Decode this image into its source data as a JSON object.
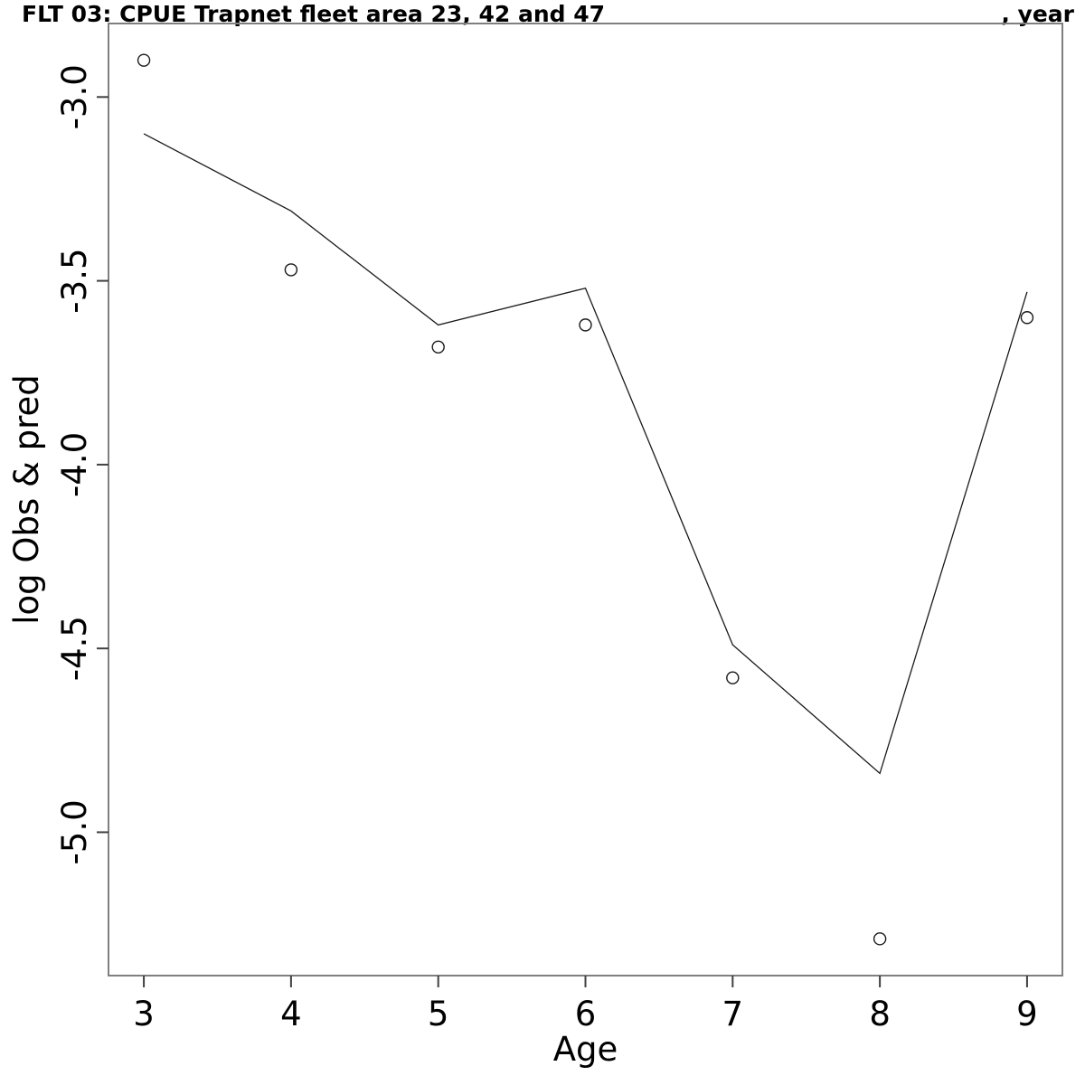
{
  "header": {
    "title": "FLT 03: CPUE Trapnet fleet area 23, 42 and 47",
    "title_right": ", year"
  },
  "chart_data": {
    "type": "line",
    "title": "FLT 03: CPUE Trapnet fleet area 23, 42 and 47",
    "title_right": ", year",
    "xlabel": "Age",
    "ylabel": "log Obs & pred",
    "x": [
      3,
      4,
      5,
      6,
      7,
      8,
      9
    ],
    "series": [
      {
        "name": "observed",
        "style": "points",
        "marker": "open-circle",
        "values": [
          -2.9,
          -3.47,
          -3.68,
          -3.62,
          -4.58,
          -5.29,
          -3.6
        ]
      },
      {
        "name": "predicted",
        "style": "line",
        "values": [
          -3.1,
          -3.31,
          -3.62,
          -3.52,
          -4.49,
          -4.84,
          -3.53
        ]
      }
    ],
    "xlim": [
      2.76,
      9.24
    ],
    "ylim": [
      -5.39,
      -2.8
    ],
    "xticks": [
      3,
      4,
      5,
      6,
      7,
      8,
      9
    ],
    "xtick_labels": [
      "3",
      "4",
      "5",
      "6",
      "7",
      "8",
      "9"
    ],
    "yticks": [
      -3.0,
      -3.5,
      -4.0,
      -4.5,
      -5.0
    ],
    "ytick_labels": [
      "-3.0",
      "-3.5",
      "-4.0",
      "-4.5",
      "-5.0"
    ],
    "grid": false,
    "legend": "none",
    "colors": {
      "box": "#7f7f7f",
      "tick": "#404040",
      "line": "#1a1a1a",
      "point_stroke": "#1a1a1a",
      "text": "#000000"
    }
  }
}
